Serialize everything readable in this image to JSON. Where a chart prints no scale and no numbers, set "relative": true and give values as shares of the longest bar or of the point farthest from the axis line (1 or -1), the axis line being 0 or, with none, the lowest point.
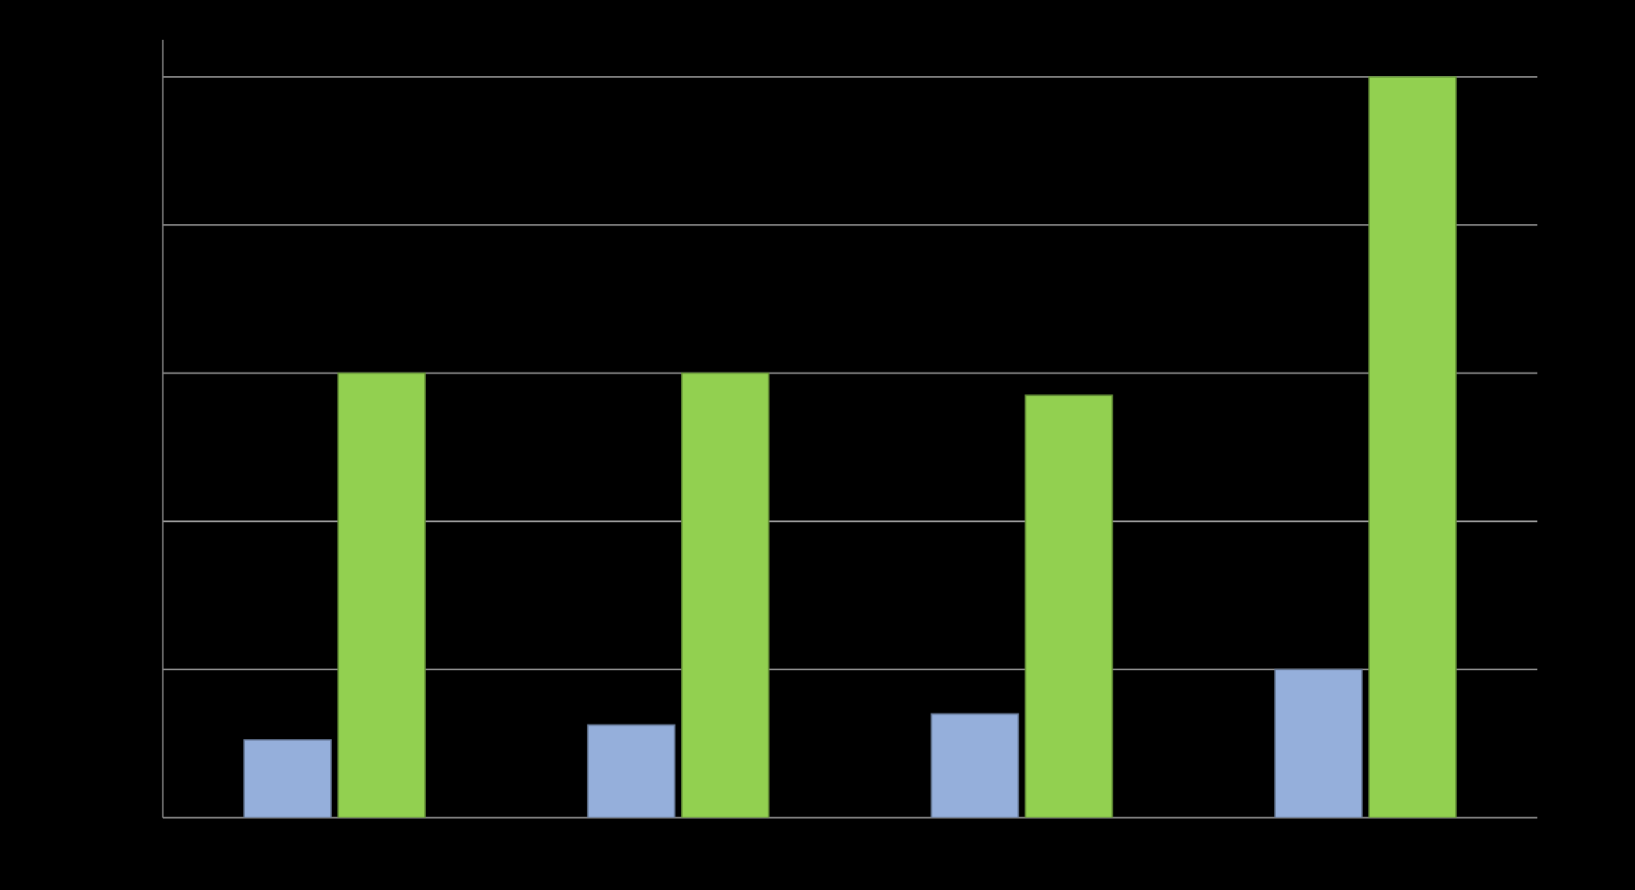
{
  "chart_data": {
    "type": "bar",
    "relative": true,
    "categories": [
      null,
      null,
      null,
      null
    ],
    "series": [
      {
        "color": "#95afdb",
        "values": [
          0.105,
          0.125,
          0.14,
          0.2
        ]
      },
      {
        "color": "#92d050",
        "values": [
          0.6,
          0.6,
          0.57,
          1.0
        ]
      }
    ],
    "grid": "y"
  }
}
